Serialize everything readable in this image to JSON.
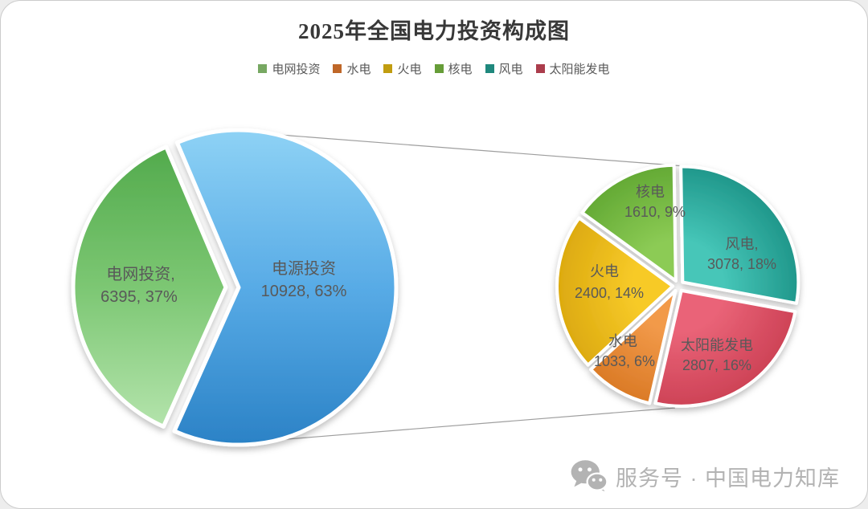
{
  "header": {
    "title": "2025年全国电力投资构成图"
  },
  "legend": {
    "items": [
      {
        "label": "电网投资",
        "color": "#77a862"
      },
      {
        "label": "水电",
        "color": "#bf6728"
      },
      {
        "label": "火电",
        "color": "#c19d10"
      },
      {
        "label": "核电",
        "color": "#669d38"
      },
      {
        "label": "风电",
        "color": "#1f887d"
      },
      {
        "label": "太阳能发电",
        "color": "#ab3d4c"
      }
    ]
  },
  "chart_data": {
    "type": "pie-of-pie",
    "title": "2025年全国电力投资构成图",
    "legend_position": "top",
    "main_pie": {
      "slices": [
        {
          "label": "电源投资",
          "value": 10928,
          "pct": 63,
          "label_lines": [
            "电源投资",
            "10928, 63%"
          ],
          "color_top": "#8ed2f5",
          "color_mid": "#58abe6",
          "color_bottom": "#2b82c6"
        },
        {
          "label": "电网投资",
          "value": 6395,
          "pct": 37,
          "label_lines": [
            "电网投资,",
            "6395, 37%"
          ],
          "color_top": "#4fa849",
          "color_mid": "#7cc773",
          "color_bottom": "#b9e6b1"
        }
      ]
    },
    "secondary_pie": {
      "represents": "电源投资",
      "slices": [
        {
          "label": "水电",
          "value": 1033,
          "pct": 6,
          "label_lines": [
            "水电",
            "1033, 6%"
          ],
          "color_light": "#f29a4a",
          "color_dark": "#d87722"
        },
        {
          "label": "火电",
          "value": 2400,
          "pct": 14,
          "label_lines": [
            "火电",
            "2400, 14%"
          ],
          "color_light": "#f7ca28",
          "color_dark": "#d9a60d"
        },
        {
          "label": "核电",
          "value": 1610,
          "pct": 9,
          "label_lines": [
            "核电",
            "1610, 9%"
          ],
          "color_light": "#8ccb55",
          "color_dark": "#5fa631"
        },
        {
          "label": "风电",
          "value": 3078,
          "pct": 18,
          "label_lines": [
            "风电,",
            "3078, 18%"
          ],
          "color_light": "#46c6b8",
          "color_dark": "#1b9185"
        },
        {
          "label": "太阳能发电",
          "value": 2807,
          "pct": 16,
          "label_lines": [
            "太阳能发电",
            "2807, 16%"
          ],
          "color_light": "#ea6478",
          "color_dark": "#ca3e52"
        }
      ]
    },
    "label_text_color": "#595959",
    "connector_line_color": "#9e9e9e"
  },
  "footer": {
    "watermark": "服务号 · 中国电力知库",
    "icon": "wechat-icon"
  }
}
